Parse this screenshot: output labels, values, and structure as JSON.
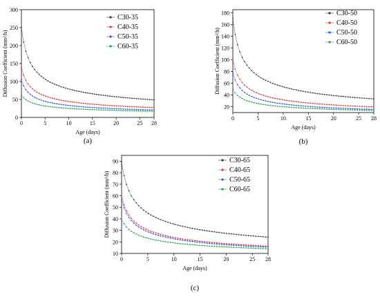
{
  "chart_data": [
    {
      "type": "line",
      "panel_label": "(a)",
      "xlabel": "Age (days)",
      "ylabel": "Diffusion Coefficient (mm²/h)",
      "xlim": [
        0,
        28
      ],
      "ylim": [
        0,
        300
      ],
      "xticks": [
        0,
        5,
        10,
        15,
        20,
        25,
        28
      ],
      "yticks": [
        0,
        50,
        100,
        150,
        200,
        250,
        300
      ],
      "legend_position": "top-right",
      "series": [
        {
          "name": "C30-35",
          "color": "#333333",
          "k": 250,
          "n": 0.5
        },
        {
          "name": "C40-35",
          "color": "#e03030",
          "k": 140,
          "n": 0.5
        },
        {
          "name": "C50-35",
          "color": "#3050e0",
          "k": 105,
          "n": 0.5
        },
        {
          "name": "C60-35",
          "color": "#20a050",
          "k": 63,
          "n": 0.4
        }
      ]
    },
    {
      "type": "line",
      "panel_label": "(b)",
      "xlabel": "Age (days)",
      "ylabel": "Diffusion Coefficient (mm²/h)",
      "xlim": [
        0,
        28
      ],
      "ylim": [
        10,
        185
      ],
      "xticks": [
        0,
        5,
        10,
        15,
        20,
        25,
        28
      ],
      "yticks": [
        20,
        40,
        60,
        80,
        100,
        120,
        140,
        160,
        180
      ],
      "legend_position": "top-right",
      "series": [
        {
          "name": "C30-50",
          "color": "#333333",
          "k": 170,
          "n": 0.5
        },
        {
          "name": "C40-50",
          "color": "#e03030",
          "k": 100,
          "n": 0.5
        },
        {
          "name": "C50-50",
          "color": "#3050e0",
          "k": 78,
          "n": 0.5
        },
        {
          "name": "C60-50",
          "color": "#20a050",
          "k": 50,
          "n": 0.4
        }
      ]
    },
    {
      "type": "line",
      "panel_label": "(c)",
      "xlabel": "Age (days)",
      "ylabel": "Diffusion Coefficient (mm²/h)",
      "xlim": [
        0,
        28
      ],
      "ylim": [
        10,
        95
      ],
      "xticks": [
        0,
        5,
        10,
        15,
        20,
        25,
        28
      ],
      "yticks": [
        10,
        20,
        30,
        40,
        50,
        60,
        70,
        80,
        90
      ],
      "legend_position": "top-right",
      "series": [
        {
          "name": "C30-65",
          "color": "#333333",
          "k": 89,
          "n": 0.4
        },
        {
          "name": "C40-65",
          "color": "#e03030",
          "k": 60,
          "n": 0.4
        },
        {
          "name": "C50-65",
          "color": "#3050e0",
          "k": 57,
          "n": 0.4
        },
        {
          "name": "C60-65",
          "color": "#20a050",
          "k": 40,
          "n": 0.32
        }
      ]
    }
  ]
}
